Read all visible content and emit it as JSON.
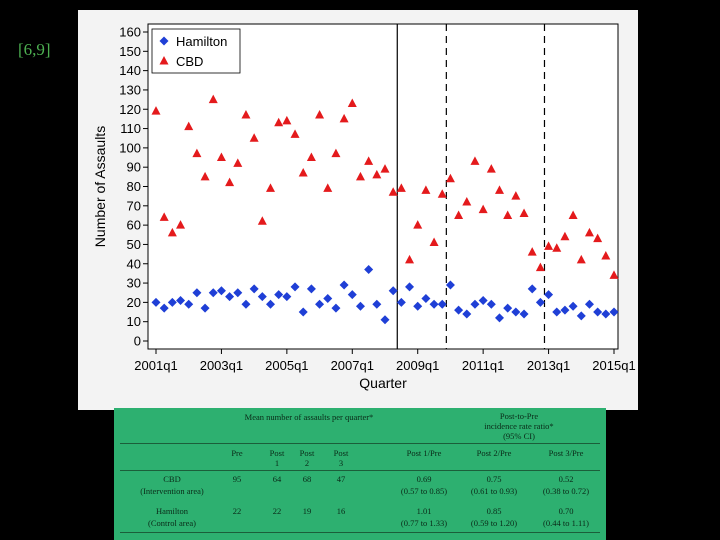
{
  "slide_ref": "[6,9]",
  "chart_data": {
    "type": "scatter",
    "title": "",
    "xlabel": "Quarter",
    "ylabel": "Number of Assaults",
    "ylim": [
      0,
      160
    ],
    "yticks": [
      0,
      10,
      20,
      30,
      40,
      50,
      60,
      70,
      80,
      90,
      100,
      110,
      120,
      130,
      140,
      150,
      160
    ],
    "x_start_year": 2001,
    "n_quarters": 57,
    "xtick_labels": [
      "2001q1",
      "2003q1",
      "2005q1",
      "2007q1",
      "2009q1",
      "2011q1",
      "2013q1",
      "2015q1"
    ],
    "xtick_index": [
      0,
      8,
      16,
      24,
      32,
      40,
      48,
      56
    ],
    "vlines": [
      {
        "index": 29.5,
        "style": "solid"
      },
      {
        "index": 35.5,
        "style": "dashed"
      },
      {
        "index": 47.5,
        "style": "dashed"
      }
    ],
    "legend": "top-left",
    "series": [
      {
        "name": "Hamilton",
        "marker": "diamond",
        "color": "#1f3fd6",
        "values": [
          20,
          17,
          20,
          21,
          19,
          25,
          17,
          25,
          26,
          23,
          25,
          19,
          27,
          23,
          19,
          24,
          23,
          28,
          15,
          27,
          19,
          22,
          17,
          29,
          24,
          18,
          37,
          19,
          11,
          26,
          20,
          28,
          18,
          22,
          19,
          19,
          29,
          16,
          14,
          19,
          21,
          19,
          12,
          17,
          15,
          14,
          27,
          20,
          24,
          15,
          16,
          18,
          13,
          19,
          15,
          14,
          15
        ]
      },
      {
        "name": "CBD",
        "marker": "triangle",
        "color": "#e41a1c",
        "values": [
          119,
          64,
          56,
          60,
          111,
          97,
          85,
          125,
          95,
          82,
          92,
          117,
          105,
          62,
          79,
          113,
          114,
          107,
          87,
          95,
          117,
          79,
          97,
          115,
          123,
          85,
          93,
          86,
          89,
          77,
          79,
          42,
          60,
          78,
          51,
          76,
          84,
          65,
          72,
          93,
          68,
          89,
          78,
          65,
          75,
          66,
          46,
          38,
          49,
          48,
          54,
          65,
          42,
          56,
          53,
          44,
          34
        ]
      }
    ]
  },
  "table": {
    "header_mean": "Mean number of assaults per quarter*",
    "header_irr_line1": "Post-to-Pre",
    "header_irr_line2": "incidence rate ratio*",
    "header_irr_line3": "(95% CI)",
    "col_pre": "Pre",
    "col_post1_a": "Post",
    "col_post1_b": "1",
    "col_post2_a": "Post",
    "col_post2_b": "2",
    "col_post3_a": "Post",
    "col_post3_b": "3",
    "col_irr1": "Post 1/Pre",
    "col_irr2": "Post 2/Pre",
    "col_irr3": "Post 3/Pre",
    "rows": [
      {
        "name": "CBD",
        "sub": "(Intervention area)",
        "pre": "95",
        "p1": "64",
        "p2": "68",
        "p3": "47",
        "r1": "0.69",
        "r1ci": "(0.57 to 0.85)",
        "r2": "0.75",
        "r2ci": "(0.61 to 0.93)",
        "r3": "0.52",
        "r3ci": "(0.38 to 0.72)"
      },
      {
        "name": "Hamilton",
        "sub": "(Control area)",
        "pre": "22",
        "p1": "22",
        "p2": "19",
        "p3": "16",
        "r1": "1.01",
        "r1ci": "(0.77 to 1.33)",
        "r2": "0.85",
        "r2ci": "(0.59 to 1.20)",
        "r3": "0.70",
        "r3ci": "(0.44 to 1.11)"
      }
    ]
  }
}
